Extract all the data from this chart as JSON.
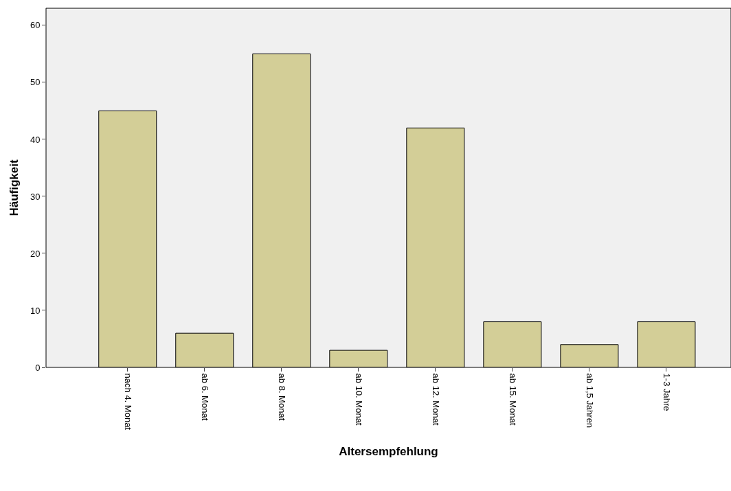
{
  "chart_data": {
    "type": "bar",
    "xlabel": "Altersempfehlung",
    "ylabel": "Häufigkeit",
    "categories": [
      "nach 4. Monat",
      "ab 6. Monat",
      "ab 8. Monat",
      "ab 10. Monat",
      "ab 12. Monat",
      "ab 15. Monat",
      "ab 1,5 Jahren",
      "1-3 Jahre"
    ],
    "values": [
      45,
      6,
      55,
      3,
      42,
      8,
      4,
      8
    ],
    "color": "#d3ce97",
    "ylim": [
      0,
      63
    ],
    "yticks": [
      0,
      10,
      20,
      30,
      40,
      50,
      60
    ],
    "grid": false
  }
}
